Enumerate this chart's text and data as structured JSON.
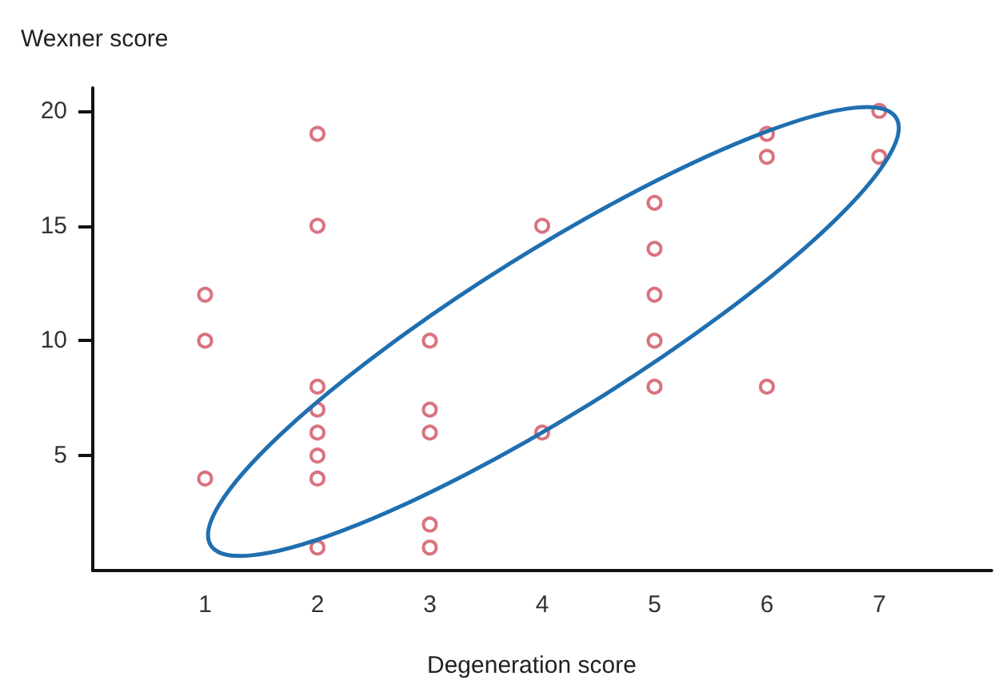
{
  "chart_data": {
    "type": "scatter",
    "xlabel": "Degeneration score",
    "ylabel": "Wexner score",
    "x": [
      1,
      1,
      1,
      2,
      2,
      2,
      2,
      2,
      2,
      2,
      2,
      3,
      3,
      3,
      3,
      3,
      4,
      4,
      5,
      5,
      5,
      5,
      5,
      6,
      6,
      6,
      7,
      7
    ],
    "values": [
      12,
      10,
      4,
      19,
      15,
      8,
      7,
      6,
      5,
      4,
      1,
      10,
      7,
      6,
      2,
      1,
      15,
      6,
      16,
      14,
      12,
      10,
      8,
      19,
      18,
      8,
      20,
      18
    ],
    "color": "#d0505f",
    "marker": "circle",
    "xlim": [
      0,
      8
    ],
    "xticks": [
      1,
      2,
      3,
      4,
      5,
      6,
      7
    ],
    "ylim": [
      0,
      21
    ],
    "yticks": [
      5,
      10,
      15,
      20
    ]
  }
}
